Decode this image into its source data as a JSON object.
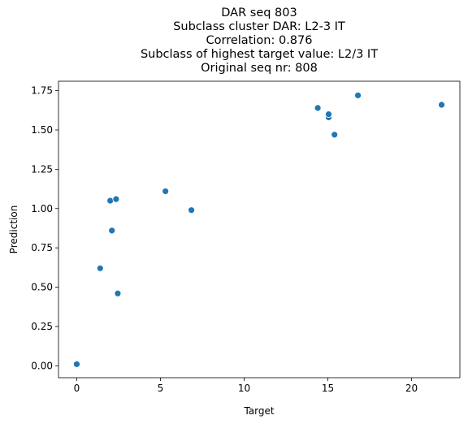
{
  "chart_data": {
    "type": "scatter",
    "title_lines": [
      "DAR seq 803",
      "Subclass cluster DAR: L2-3 IT",
      "Correlation: 0.876",
      "Subclass of highest target value: L2/3 IT",
      "Original seq nr: 808"
    ],
    "xlabel": "Target",
    "ylabel": "Prediction",
    "xlim": [
      -1.09,
      22.89
    ],
    "ylim": [
      -0.076,
      1.81
    ],
    "xticks": [
      0,
      5,
      10,
      15,
      20
    ],
    "xtick_labels": [
      "0",
      "5",
      "10",
      "15",
      "20"
    ],
    "yticks": [
      0.0,
      0.25,
      0.5,
      0.75,
      1.0,
      1.25,
      1.5,
      1.75
    ],
    "ytick_labels": [
      "0.00",
      "0.25",
      "0.50",
      "0.75",
      "1.00",
      "1.25",
      "1.50",
      "1.75"
    ],
    "grid": false,
    "marker_color": "#1f77b4",
    "points": [
      {
        "x": 0.0,
        "y": 0.01
      },
      {
        "x": 1.4,
        "y": 0.62
      },
      {
        "x": 2.0,
        "y": 1.05
      },
      {
        "x": 2.1,
        "y": 0.86
      },
      {
        "x": 2.35,
        "y": 1.06
      },
      {
        "x": 2.45,
        "y": 0.46
      },
      {
        "x": 5.3,
        "y": 1.11
      },
      {
        "x": 6.85,
        "y": 0.99
      },
      {
        "x": 14.4,
        "y": 1.64
      },
      {
        "x": 15.05,
        "y": 1.58
      },
      {
        "x": 15.05,
        "y": 1.6
      },
      {
        "x": 15.4,
        "y": 1.47
      },
      {
        "x": 16.8,
        "y": 1.72
      },
      {
        "x": 21.8,
        "y": 1.66
      }
    ]
  }
}
